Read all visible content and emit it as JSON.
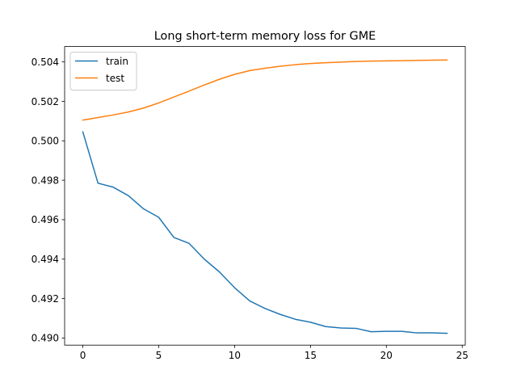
{
  "chart_data": {
    "type": "line",
    "title": "Long short-term memory loss for GME",
    "xlabel": "",
    "ylabel": "",
    "xlim": [
      -1.2,
      25.2
    ],
    "ylim": [
      0.48964,
      0.50478
    ],
    "xticks": [
      0,
      5,
      10,
      15,
      20,
      25
    ],
    "yticks": [
      0.49,
      0.492,
      0.494,
      0.496,
      0.498,
      0.5,
      0.502,
      0.504
    ],
    "ytick_labels": [
      "0.490",
      "0.492",
      "0.494",
      "0.496",
      "0.498",
      "0.500",
      "0.502",
      "0.504"
    ],
    "grid": false,
    "legend": "top-left",
    "x": [
      0,
      1,
      2,
      3,
      4,
      5,
      6,
      7,
      8,
      9,
      10,
      11,
      12,
      13,
      14,
      15,
      16,
      17,
      18,
      19,
      20,
      21,
      22,
      23,
      24
    ],
    "series": [
      {
        "name": "train",
        "color": "#1f77b4",
        "values": [
          0.50045,
          0.49785,
          0.49765,
          0.49722,
          0.49655,
          0.49612,
          0.4951,
          0.4948,
          0.494,
          0.49335,
          0.49255,
          0.49188,
          0.4915,
          0.4912,
          0.49095,
          0.4908,
          0.49058,
          0.49051,
          0.49049,
          0.49032,
          0.49034,
          0.49034,
          0.49026,
          0.49026,
          0.49024
        ]
      },
      {
        "name": "test",
        "color": "#ff7f0e",
        "values": [
          0.50105,
          0.50118,
          0.50131,
          0.50146,
          0.50166,
          0.50192,
          0.50222,
          0.50252,
          0.50283,
          0.50312,
          0.50337,
          0.50356,
          0.50368,
          0.50378,
          0.50386,
          0.50392,
          0.50396,
          0.50399,
          0.50402,
          0.50404,
          0.50405,
          0.50406,
          0.50408,
          0.50409,
          0.5041
        ]
      }
    ]
  }
}
